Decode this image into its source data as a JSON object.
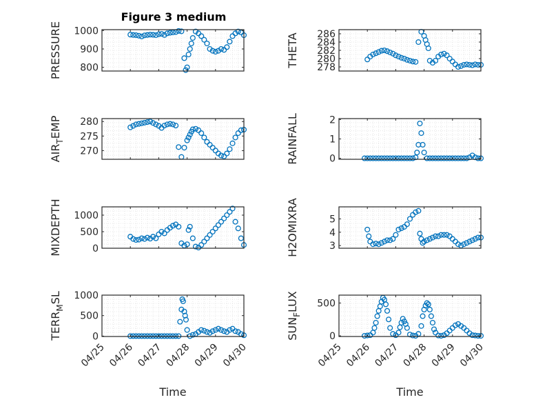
{
  "figure": {
    "title": "Figure 3 medium"
  },
  "style": {
    "marker_color": "#0072BD",
    "axis_color": "#262626",
    "grid_color": "#dfdfdf"
  },
  "chart_data": [
    {
      "type": "scatter",
      "ylabel": "PRESSURE",
      "xlabel": "",
      "xlim": [
        0,
        5
      ],
      "ylim": [
        780,
        1005
      ],
      "yticks": [
        800,
        900,
        1000
      ],
      "xticks": [],
      "x": [
        1.0,
        1.1,
        1.2,
        1.3,
        1.4,
        1.5,
        1.6,
        1.7,
        1.8,
        1.9,
        2.0,
        2.1,
        2.2,
        2.3,
        2.4,
        2.5,
        2.6,
        2.7,
        2.8,
        2.9,
        2.95,
        3.0,
        3.05,
        3.1,
        3.15,
        3.2,
        3.3,
        3.4,
        3.5,
        3.6,
        3.7,
        3.8,
        3.9,
        4.0,
        4.1,
        4.2,
        4.3,
        4.4,
        4.5,
        4.6,
        4.7,
        4.8,
        4.9,
        5.0
      ],
      "y": [
        978,
        976,
        975,
        972,
        968,
        974,
        976,
        978,
        977,
        975,
        980,
        982,
        976,
        985,
        988,
        990,
        992,
        998,
        996,
        850,
        785,
        800,
        870,
        900,
        930,
        960,
        995,
        985,
        970,
        950,
        930,
        900,
        890,
        885,
        890,
        900,
        895,
        910,
        940,
        970,
        985,
        995,
        990,
        975
      ]
    },
    {
      "type": "scatter",
      "ylabel": "THETA",
      "xlabel": "",
      "xlim": [
        0,
        5
      ],
      "ylim": [
        277,
        287
      ],
      "yticks": [
        278,
        280,
        282,
        284,
        286
      ],
      "xticks": [],
      "x": [
        1.0,
        1.1,
        1.2,
        1.3,
        1.4,
        1.5,
        1.6,
        1.7,
        1.8,
        1.9,
        2.0,
        2.1,
        2.2,
        2.3,
        2.4,
        2.5,
        2.6,
        2.7,
        2.8,
        2.9,
        3.0,
        3.05,
        3.1,
        3.15,
        3.2,
        3.3,
        3.4,
        3.5,
        3.6,
        3.7,
        3.8,
        3.9,
        4.0,
        4.1,
        4.2,
        4.3,
        4.4,
        4.5,
        4.6,
        4.7,
        4.8,
        4.9,
        5.0
      ],
      "y": [
        279.8,
        280.5,
        281,
        281.3,
        281.6,
        281.9,
        282,
        281.8,
        281.5,
        281.2,
        280.8,
        280.5,
        280.2,
        280,
        279.7,
        279.5,
        279.3,
        279.2,
        284,
        286.5,
        285.5,
        284.5,
        283.5,
        282.5,
        279.5,
        279,
        279.5,
        280.5,
        281,
        281.2,
        280.8,
        280,
        279.3,
        278.6,
        278,
        278.2,
        278.5,
        278.6,
        278.5,
        278.4,
        278.6,
        278.5,
        278.5
      ]
    },
    {
      "type": "scatter",
      "ylabel": "AIR_TEMP",
      "xlabel": "",
      "xlim": [
        0,
        5
      ],
      "ylim": [
        267,
        281
      ],
      "yticks": [
        270,
        275,
        280
      ],
      "xticks": [],
      "x": [
        1.0,
        1.1,
        1.2,
        1.3,
        1.4,
        1.5,
        1.6,
        1.7,
        1.8,
        1.9,
        2.0,
        2.1,
        2.2,
        2.3,
        2.4,
        2.5,
        2.6,
        2.7,
        2.8,
        2.9,
        3.0,
        3.05,
        3.1,
        3.15,
        3.2,
        3.3,
        3.4,
        3.5,
        3.6,
        3.7,
        3.8,
        3.9,
        4.0,
        4.1,
        4.2,
        4.3,
        4.4,
        4.5,
        4.6,
        4.7,
        4.8,
        4.9,
        5.0
      ],
      "y": [
        278,
        278.5,
        279,
        279.2,
        279.4,
        279.6,
        279.8,
        280,
        279.5,
        279,
        278.5,
        277.8,
        278.6,
        279,
        279.2,
        279,
        278.6,
        271.2,
        267.8,
        271,
        273.5,
        274.5,
        275.5,
        276.5,
        277.3,
        277.5,
        277,
        276,
        274.5,
        273,
        272,
        271,
        270,
        269,
        268.3,
        268,
        269,
        270.5,
        272.5,
        274.5,
        276,
        277,
        277.2
      ]
    },
    {
      "type": "scatter",
      "ylabel": "RAINFALL",
      "xlabel": "",
      "xlim": [
        0,
        5
      ],
      "ylim": [
        -0.05,
        2.05
      ],
      "yticks": [
        0,
        1,
        2
      ],
      "xticks": [],
      "x": [
        0.9,
        1.0,
        1.1,
        1.2,
        1.3,
        1.4,
        1.5,
        1.6,
        1.7,
        1.8,
        1.9,
        2.0,
        2.1,
        2.2,
        2.3,
        2.4,
        2.5,
        2.6,
        2.7,
        2.75,
        2.8,
        2.85,
        2.9,
        2.95,
        3.0,
        3.1,
        3.2,
        3.3,
        3.4,
        3.5,
        3.6,
        3.7,
        3.8,
        3.9,
        4.0,
        4.1,
        4.2,
        4.3,
        4.4,
        4.5,
        4.6,
        4.7,
        4.8,
        4.9,
        5.0
      ],
      "y": [
        0,
        0,
        0,
        0,
        0,
        0,
        0,
        0,
        0,
        0,
        0,
        0,
        0,
        0,
        0,
        0,
        0,
        0,
        0.05,
        0.3,
        0.7,
        1.8,
        1.3,
        0.7,
        0.3,
        0,
        0,
        0,
        0,
        0,
        0,
        0,
        0,
        0,
        0,
        0,
        0,
        0,
        0,
        0,
        0.05,
        0.15,
        0.05,
        0,
        0
      ]
    },
    {
      "type": "scatter",
      "ylabel": "MIXDEPTH",
      "xlabel": "",
      "xlim": [
        0,
        5
      ],
      "ylim": [
        0,
        1250
      ],
      "yticks": [
        0,
        500,
        1000
      ],
      "xticks": [],
      "x": [
        1.0,
        1.1,
        1.2,
        1.3,
        1.4,
        1.5,
        1.6,
        1.7,
        1.8,
        1.9,
        2.0,
        2.1,
        2.2,
        2.3,
        2.4,
        2.5,
        2.6,
        2.7,
        2.8,
        2.9,
        3.0,
        3.05,
        3.1,
        3.2,
        3.3,
        3.4,
        3.5,
        3.6,
        3.7,
        3.8,
        3.9,
        4.0,
        4.1,
        4.2,
        4.3,
        4.4,
        4.5,
        4.6,
        4.7,
        4.8,
        4.9,
        5.0
      ],
      "y": [
        350,
        280,
        250,
        260,
        300,
        280,
        320,
        290,
        350,
        300,
        420,
        500,
        450,
        550,
        620,
        680,
        720,
        650,
        150,
        80,
        120,
        550,
        650,
        300,
        50,
        20,
        100,
        200,
        300,
        400,
        500,
        600,
        700,
        800,
        900,
        1000,
        1100,
        1200,
        800,
        600,
        300,
        100
      ]
    },
    {
      "type": "scatter",
      "ylabel": "H2OMIXRA",
      "xlabel": "",
      "xlim": [
        0,
        5
      ],
      "ylim": [
        2.8,
        5.9
      ],
      "yticks": [
        3,
        4,
        5
      ],
      "xticks": [],
      "x": [
        1.0,
        1.05,
        1.1,
        1.2,
        1.3,
        1.4,
        1.5,
        1.6,
        1.7,
        1.8,
        1.9,
        2.0,
        2.1,
        2.2,
        2.3,
        2.4,
        2.5,
        2.6,
        2.7,
        2.8,
        2.85,
        2.9,
        2.95,
        3.0,
        3.1,
        3.2,
        3.3,
        3.4,
        3.5,
        3.6,
        3.7,
        3.8,
        3.9,
        4.0,
        4.1,
        4.2,
        4.3,
        4.4,
        4.5,
        4.6,
        4.7,
        4.8,
        4.9,
        5.0
      ],
      "y": [
        4.2,
        3.7,
        3.3,
        3.1,
        3.15,
        3.1,
        3.2,
        3.3,
        3.4,
        3.4,
        3.5,
        3.8,
        4.2,
        4.3,
        4.4,
        4.6,
        5.0,
        5.3,
        5.5,
        5.6,
        3.9,
        3.5,
        3.2,
        3.3,
        3.4,
        3.5,
        3.6,
        3.7,
        3.7,
        3.8,
        3.8,
        3.8,
        3.7,
        3.5,
        3.3,
        3.1,
        3.0,
        3.1,
        3.2,
        3.3,
        3.4,
        3.5,
        3.6,
        3.6
      ]
    },
    {
      "type": "scatter",
      "ylabel": "TERR_MSL",
      "xlabel": "Time",
      "xlim": [
        0,
        5
      ],
      "ylim": [
        -10,
        1000
      ],
      "yticks": [
        0,
        500,
        1000
      ],
      "xticks": [
        "04/25",
        "04/26",
        "04/27",
        "04/28",
        "04/29",
        "04/30"
      ],
      "x": [
        1.0,
        1.1,
        1.2,
        1.3,
        1.4,
        1.5,
        1.6,
        1.7,
        1.8,
        1.9,
        2.0,
        2.1,
        2.2,
        2.3,
        2.4,
        2.5,
        2.6,
        2.7,
        2.75,
        2.8,
        2.83,
        2.86,
        2.9,
        2.93,
        2.96,
        3.0,
        3.1,
        3.2,
        3.3,
        3.4,
        3.5,
        3.6,
        3.7,
        3.8,
        3.9,
        4.0,
        4.1,
        4.2,
        4.3,
        4.4,
        4.5,
        4.6,
        4.7,
        4.8,
        4.9,
        5.0
      ],
      "y": [
        0,
        0,
        0,
        0,
        0,
        0,
        0,
        0,
        0,
        0,
        0,
        0,
        0,
        0,
        0,
        0,
        0,
        0,
        350,
        650,
        900,
        850,
        600,
        500,
        400,
        150,
        0,
        30,
        50,
        100,
        150,
        130,
        100,
        80,
        120,
        150,
        180,
        150,
        120,
        100,
        150,
        180,
        120,
        100,
        50,
        20
      ]
    },
    {
      "type": "scatter",
      "ylabel": "SUN_FLUX",
      "xlabel": "Time",
      "xlim": [
        0,
        5
      ],
      "ylim": [
        -10,
        620
      ],
      "yticks": [
        0,
        500
      ],
      "xticks": [
        "04/25",
        "04/26",
        "04/27",
        "04/28",
        "04/29",
        "04/30"
      ],
      "x": [
        0.9,
        1.0,
        1.1,
        1.2,
        1.25,
        1.3,
        1.35,
        1.4,
        1.45,
        1.5,
        1.55,
        1.6,
        1.65,
        1.7,
        1.75,
        1.8,
        1.9,
        2.0,
        2.1,
        2.15,
        2.2,
        2.25,
        2.3,
        2.35,
        2.4,
        2.5,
        2.6,
        2.7,
        2.8,
        2.9,
        2.95,
        3.0,
        3.05,
        3.1,
        3.15,
        3.2,
        3.25,
        3.3,
        3.35,
        3.4,
        3.5,
        3.6,
        3.7,
        3.8,
        3.9,
        4.0,
        4.1,
        4.2,
        4.3,
        4.4,
        4.5,
        4.6,
        4.7,
        4.8,
        4.9,
        5.0
      ],
      "y": [
        0,
        5,
        10,
        50,
        120,
        200,
        300,
        380,
        450,
        520,
        580,
        550,
        480,
        380,
        250,
        120,
        30,
        10,
        50,
        130,
        200,
        260,
        220,
        180,
        120,
        20,
        5,
        0,
        30,
        150,
        300,
        400,
        460,
        500,
        480,
        400,
        300,
        200,
        100,
        50,
        5,
        0,
        10,
        40,
        80,
        120,
        160,
        180,
        150,
        120,
        80,
        40,
        10,
        5,
        0,
        0
      ]
    }
  ]
}
